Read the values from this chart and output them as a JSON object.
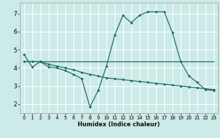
{
  "bg_color": "#cceae7",
  "grid_color": "#ffffff",
  "line_color": "#1a6b5e",
  "xlabel": "Humidex (Indice chaleur)",
  "xlim": [
    -0.5,
    23.5
  ],
  "ylim": [
    1.5,
    7.6
  ],
  "xticks": [
    0,
    1,
    2,
    3,
    4,
    5,
    6,
    7,
    8,
    9,
    10,
    11,
    12,
    13,
    14,
    15,
    16,
    17,
    18,
    19,
    20,
    21,
    22,
    23
  ],
  "yticks": [
    2,
    3,
    4,
    5,
    6,
    7
  ],
  "line1_x": [
    0,
    1,
    2,
    3,
    4,
    5,
    6,
    7,
    8,
    9,
    10,
    11,
    12,
    13,
    14,
    15,
    16,
    17,
    18,
    19,
    20,
    21,
    22,
    23
  ],
  "line1_y": [
    4.35,
    4.35,
    4.35,
    4.35,
    4.35,
    4.35,
    4.35,
    4.35,
    4.35,
    4.35,
    4.35,
    4.35,
    4.35,
    4.35,
    4.35,
    4.35,
    4.35,
    4.35,
    4.35,
    4.35,
    4.35,
    4.35,
    4.35,
    4.35
  ],
  "line2_x": [
    0,
    1,
    2,
    3,
    4,
    5,
    6,
    7,
    8,
    9,
    10,
    11,
    12,
    13,
    14,
    15,
    16,
    17,
    18,
    19,
    20,
    21,
    22,
    23
  ],
  "line2_y": [
    4.75,
    4.05,
    4.35,
    4.05,
    4.0,
    3.85,
    3.65,
    3.4,
    1.85,
    2.75,
    4.1,
    5.8,
    6.9,
    6.5,
    6.9,
    7.1,
    7.1,
    7.1,
    5.95,
    4.35,
    3.55,
    3.2,
    2.8,
    2.75
  ],
  "line3_x": [
    0,
    1,
    2,
    3,
    4,
    5,
    6,
    7,
    8,
    9,
    10,
    11,
    12,
    13,
    14,
    15,
    16,
    17,
    18,
    19,
    20,
    21,
    22,
    23
  ],
  "line3_y": [
    4.35,
    4.35,
    4.35,
    4.2,
    4.1,
    4.0,
    3.9,
    3.75,
    3.65,
    3.55,
    3.45,
    3.4,
    3.35,
    3.3,
    3.25,
    3.2,
    3.15,
    3.1,
    3.05,
    3.0,
    2.95,
    2.9,
    2.85,
    2.8
  ]
}
